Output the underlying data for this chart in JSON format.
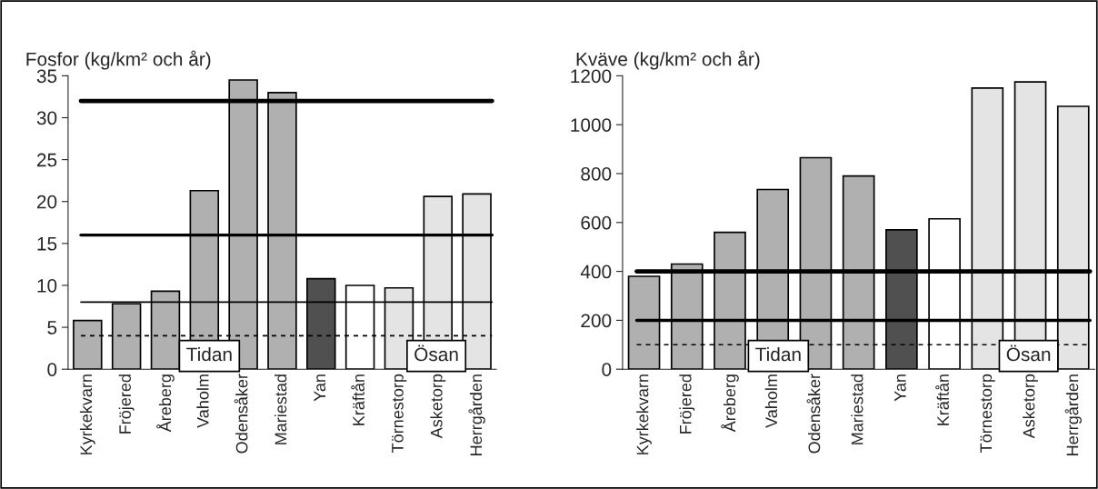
{
  "chart_data": [
    {
      "type": "bar",
      "title": "Fosfor (kg/km² och år)",
      "categories": [
        "Kyrkekvarn",
        "Fröjered",
        "Åreberg",
        "Vaholm",
        "Odensåker",
        "Mariestad",
        "Yan",
        "Kräftån",
        "Törnestorp",
        "Asketorp",
        "Herrgården"
      ],
      "values": [
        5.8,
        7.8,
        9.3,
        21.3,
        34.5,
        33.0,
        10.8,
        10.0,
        9.7,
        20.6,
        20.9
      ],
      "colors": [
        "#b0b0b0",
        "#b0b0b0",
        "#b0b0b0",
        "#b0b0b0",
        "#b0b0b0",
        "#b0b0b0",
        "#505050",
        "#ffffff",
        "#e4e4e4",
        "#e4e4e4",
        "#e4e4e4"
      ],
      "ylim": [
        0,
        35
      ],
      "yticks": [
        0,
        5,
        10,
        15,
        20,
        25,
        30,
        35
      ],
      "grid": false,
      "legend": false,
      "ref_lines": [
        {
          "axis": "y",
          "value": 32,
          "line_style": "solid"
        },
        {
          "axis": "y",
          "value": 16,
          "line_style": "solid"
        },
        {
          "axis": "y",
          "value": 8,
          "line_style": "solid"
        },
        {
          "axis": "y",
          "value": 4,
          "line_style": "dashed"
        }
      ],
      "annotations": [
        "Tidan",
        "Ösan"
      ]
    },
    {
      "type": "bar",
      "title": "Kväve (kg/km² och år)",
      "categories": [
        "Kyrkekvarn",
        "Fröjered",
        "Åreberg",
        "Vaholm",
        "Odensåker",
        "Mariestad",
        "Yan",
        "Kräftån",
        "Törnestorp",
        "Asketorp",
        "Herrgården"
      ],
      "values": [
        380,
        430,
        560,
        735,
        865,
        790,
        570,
        615,
        1150,
        1175,
        1075
      ],
      "colors": [
        "#b0b0b0",
        "#b0b0b0",
        "#b0b0b0",
        "#b0b0b0",
        "#b0b0b0",
        "#b0b0b0",
        "#505050",
        "#ffffff",
        "#e4e4e4",
        "#e4e4e4",
        "#e4e4e4"
      ],
      "ylim": [
        0,
        1200
      ],
      "yticks": [
        0,
        200,
        400,
        600,
        800,
        1000,
        1200
      ],
      "grid": false,
      "legend": false,
      "ref_lines": [
        {
          "axis": "y",
          "value": 400,
          "line_style": "solid"
        },
        {
          "axis": "y",
          "value": 200,
          "line_style": "solid"
        },
        {
          "axis": "y",
          "value": 100,
          "line_style": "dashed"
        }
      ],
      "annotations": [
        "Tidan",
        "Ösan"
      ]
    }
  ]
}
